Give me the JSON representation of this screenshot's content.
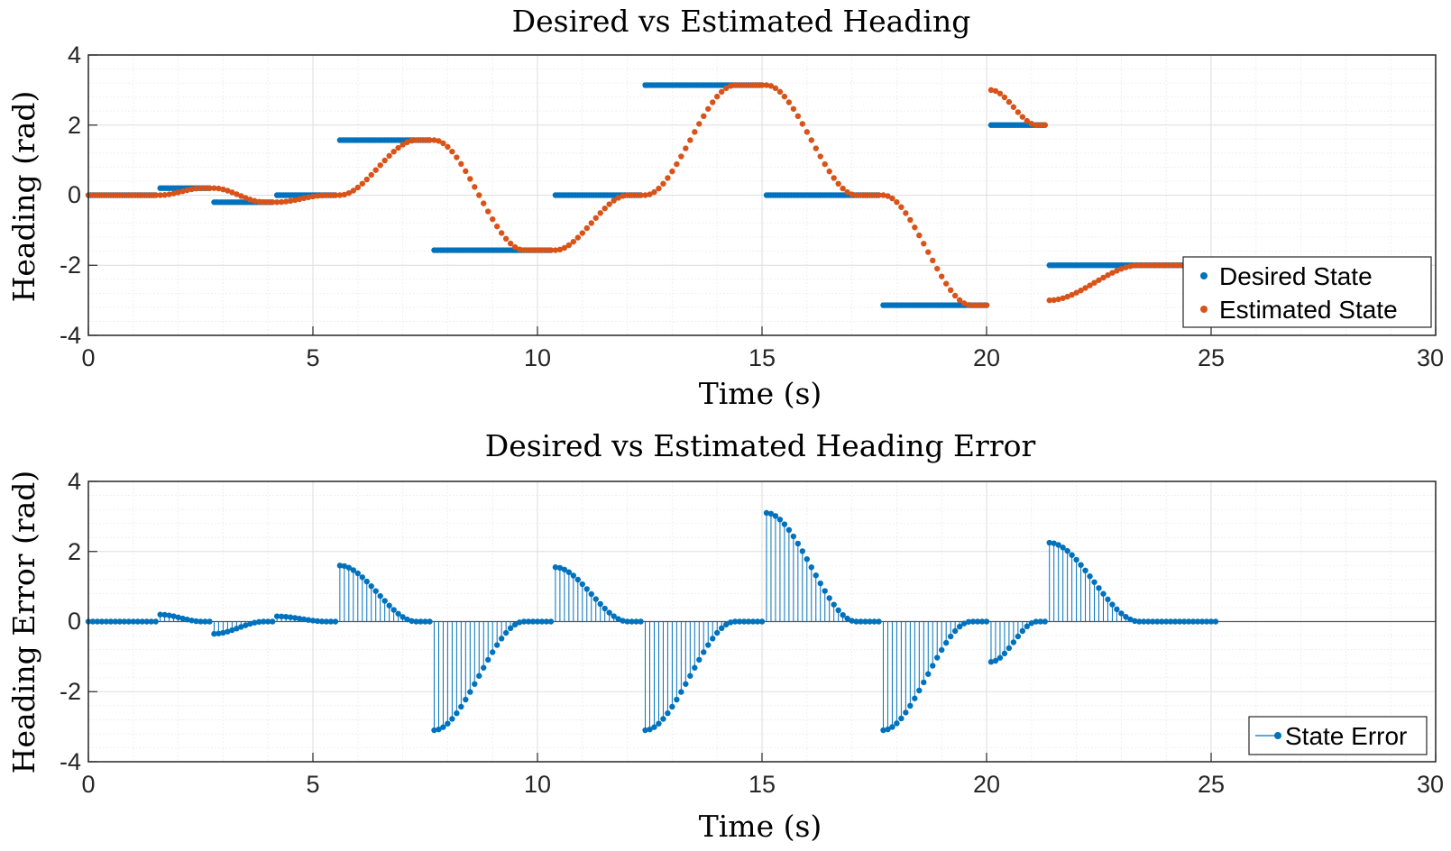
{
  "colors": {
    "desired": "#0072BD",
    "estimated": "#D95319",
    "axis": "#262626",
    "grid_major": "#dedede",
    "grid_minor": "#efefef"
  },
  "chart_data": [
    {
      "type": "scatter",
      "title": "Desired vs Estimated Heading",
      "xlabel": "Time (s)",
      "ylabel": "Heading (rad)",
      "xlim": [
        0,
        30
      ],
      "ylim": [
        -4,
        4
      ],
      "xticks": [
        "0",
        "5",
        "10",
        "15",
        "20",
        "25",
        "30"
      ],
      "yticks": [
        "4",
        "2",
        "0",
        "-2",
        "-4"
      ],
      "grid": true,
      "minor_grid": true,
      "legend_position": "right",
      "legend": [
        "Desired State",
        "Estimated State"
      ],
      "dt": 0.1,
      "series": [
        {
          "name": "Desired State",
          "segments": [
            {
              "t0": 0.0,
              "t1": 1.5,
              "value": 0.0
            },
            {
              "t0": 1.6,
              "t1": 2.7,
              "value": 0.2
            },
            {
              "t0": 2.8,
              "t1": 4.1,
              "value": -0.2
            },
            {
              "t0": 4.2,
              "t1": 5.5,
              "value": 0.0
            },
            {
              "t0": 5.6,
              "t1": 7.6,
              "value": 1.57
            },
            {
              "t0": 7.7,
              "t1": 10.3,
              "value": -1.57
            },
            {
              "t0": 10.4,
              "t1": 12.3,
              "value": 0.0
            },
            {
              "t0": 12.4,
              "t1": 15.0,
              "value": 3.14
            },
            {
              "t0": 15.1,
              "t1": 17.6,
              "value": 0.0
            },
            {
              "t0": 17.7,
              "t1": 20.0,
              "value": -3.14
            },
            {
              "t0": 20.1,
              "t1": 21.3,
              "value": 2.0
            },
            {
              "t0": 21.4,
              "t1": 25.1,
              "value": -2.0
            }
          ]
        },
        {
          "name": "Estimated State",
          "segments": [
            {
              "t0": 0.0,
              "t1": 1.5,
              "start": 0.0,
              "target": 0.0
            },
            {
              "t0": 1.6,
              "t1": 2.7,
              "start": 0.0,
              "target": 0.2
            },
            {
              "t0": 2.8,
              "t1": 4.1,
              "start": 0.2,
              "target": -0.2
            },
            {
              "t0": 4.2,
              "t1": 5.5,
              "start": -0.2,
              "target": 0.0
            },
            {
              "t0": 5.6,
              "t1": 7.6,
              "start": 0.0,
              "target": 1.57
            },
            {
              "t0": 7.7,
              "t1": 10.3,
              "start": 1.57,
              "target": -1.57
            },
            {
              "t0": 10.4,
              "t1": 12.3,
              "start": -1.57,
              "target": 0.0
            },
            {
              "t0": 12.4,
              "t1": 15.0,
              "start": 0.0,
              "target": 3.14
            },
            {
              "t0": 15.1,
              "t1": 17.6,
              "start": 3.14,
              "target": 0.0
            },
            {
              "t0": 17.7,
              "t1": 20.0,
              "start": 0.0,
              "target": -3.14
            },
            {
              "t0": 20.1,
              "t1": 21.3,
              "start": 3.0,
              "target": 2.0
            },
            {
              "t0": 21.4,
              "t1": 25.1,
              "start": -3.0,
              "target": -2.0
            }
          ]
        }
      ]
    },
    {
      "type": "stem",
      "title": "Desired vs Estimated Heading Error",
      "xlabel": "Time (s)",
      "ylabel": "Heading Error (rad)",
      "xlim": [
        0,
        30
      ],
      "ylim": [
        -4,
        4
      ],
      "xticks": [
        "0",
        "5",
        "10",
        "15",
        "20",
        "25",
        "30"
      ],
      "yticks": [
        "4",
        "2",
        "0",
        "-2",
        "-4"
      ],
      "grid": true,
      "minor_grid": true,
      "legend_position": "bottom-right",
      "legend": [
        "State Error"
      ],
      "dt": 0.1,
      "series": [
        {
          "name": "State Error",
          "segments": [
            {
              "t0": 0.0,
              "t1": 1.5,
              "initial": 0.0
            },
            {
              "t0": 1.6,
              "t1": 2.7,
              "initial": 0.2
            },
            {
              "t0": 2.8,
              "t1": 4.1,
              "initial": -0.35
            },
            {
              "t0": 4.2,
              "t1": 5.5,
              "initial": 0.15
            },
            {
              "t0": 5.6,
              "t1": 7.6,
              "initial": 1.6
            },
            {
              "t0": 7.7,
              "t1": 10.3,
              "initial": -3.1
            },
            {
              "t0": 10.4,
              "t1": 12.3,
              "initial": 1.55
            },
            {
              "t0": 12.4,
              "t1": 15.0,
              "initial": -3.1
            },
            {
              "t0": 15.1,
              "t1": 17.6,
              "initial": 3.1
            },
            {
              "t0": 17.7,
              "t1": 20.0,
              "initial": -3.1
            },
            {
              "t0": 20.1,
              "t1": 21.3,
              "initial": -1.15
            },
            {
              "t0": 21.4,
              "t1": 25.1,
              "initial": 2.25
            }
          ]
        }
      ]
    }
  ]
}
